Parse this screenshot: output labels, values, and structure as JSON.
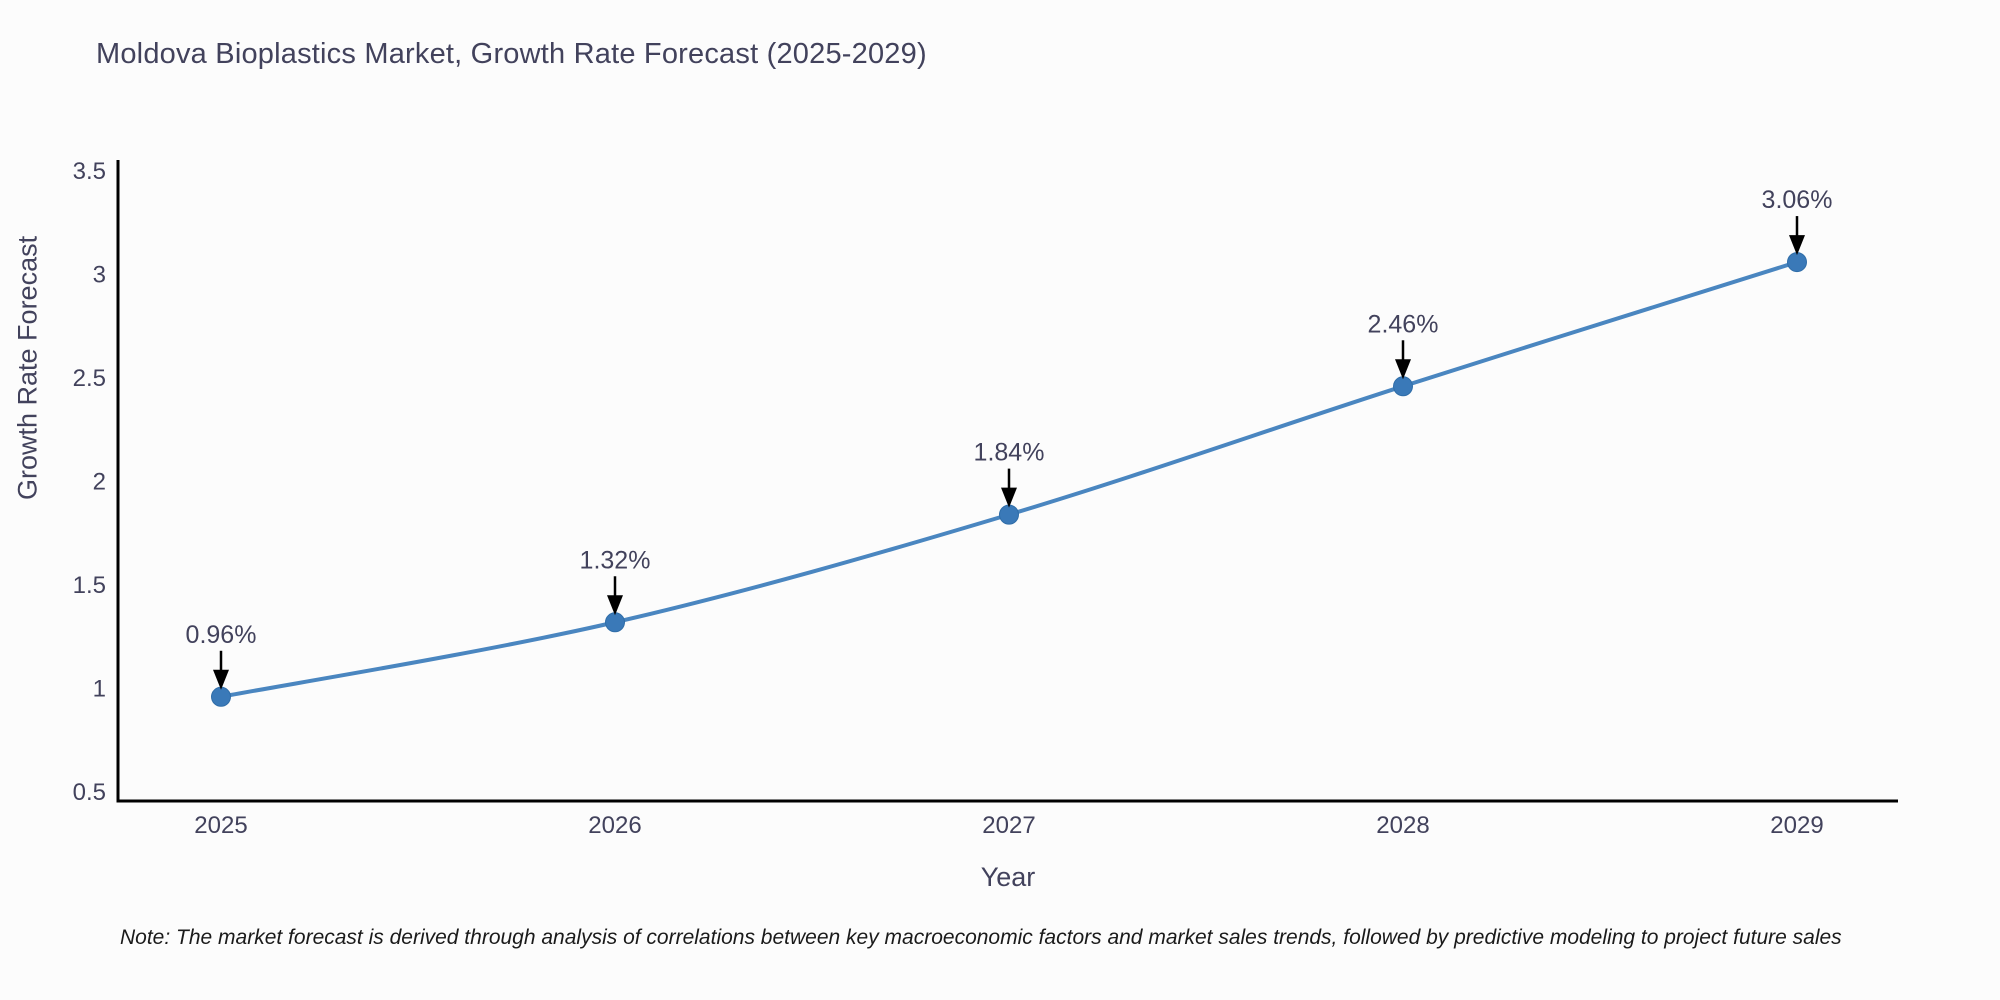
{
  "title": "Moldova Bioplastics Market, Growth Rate Forecast (2025-2029)",
  "note": "Note: The market forecast is derived through analysis of correlations between key macroeconomic factors and market sales trends, followed by predictive modeling to project future sales",
  "chart_data": {
    "type": "line",
    "title": "Moldova Bioplastics Market, Growth Rate Forecast (2025-2029)",
    "categories": [
      "2025",
      "2026",
      "2027",
      "2028",
      "2029"
    ],
    "values": [
      0.96,
      1.32,
      1.84,
      2.46,
      3.06
    ],
    "point_labels": [
      "0.96%",
      "1.32%",
      "1.84%",
      "2.46%",
      "3.06%"
    ],
    "xlabel": "Year",
    "ylabel": "Growth Rate Forecast",
    "ylim": [
      0.5,
      3.5
    ],
    "yticks": [
      0.5,
      1,
      1.5,
      2,
      2.5,
      3,
      3.5
    ],
    "grid": false,
    "legend_position": "none",
    "colors": {
      "line": "#4a86c0",
      "marker": "#3a79b8",
      "marker_edge": "#2f6da8",
      "axis": "#000000",
      "text": "#42425c",
      "annotation_arrow": "#000000",
      "background": "#fcfcfc"
    }
  }
}
